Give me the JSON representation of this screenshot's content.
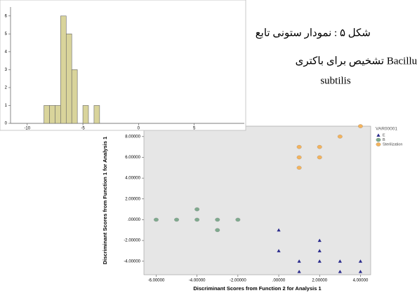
{
  "chart_data": [
    {
      "type": "histogram",
      "bins": [
        -8.5,
        -8,
        -7.5,
        -7,
        -6.5,
        -6,
        -5.5,
        -5,
        -4.5,
        -4,
        -3.5
      ],
      "values": [
        1,
        1,
        1,
        6,
        5,
        3,
        0,
        1,
        0,
        1
      ],
      "color": "#d9d49b",
      "xlim": [
        -11.5,
        9.5
      ],
      "ylim": [
        0,
        6.5
      ],
      "xticks": [
        -10,
        -5,
        0,
        5
      ],
      "yticks": [
        0,
        1,
        2,
        3,
        4,
        5,
        6
      ]
    },
    {
      "type": "scatter",
      "x_label": "Discriminant Scores from Function 2 for Analysis 1",
      "y_label": "Discriminant Scores from Function 1 for Analysis 1",
      "legend_title": "VAR00001",
      "series": [
        {
          "name": "E",
          "color": "#2b2b8c",
          "marker": "triangle",
          "x": [
            0,
            0,
            1,
            1,
            2,
            2,
            2,
            3,
            3,
            4,
            4
          ],
          "values": [
            -1,
            -3,
            -4,
            -5,
            -2,
            -3,
            -4,
            -4,
            -5,
            -4,
            -5
          ]
        },
        {
          "name": "B",
          "color": "#7faa8e",
          "marker": "circle",
          "x": [
            -6,
            -5,
            -4,
            -4,
            -3,
            -3,
            -2
          ],
          "values": [
            0,
            0,
            1,
            0,
            0,
            -1,
            0
          ]
        },
        {
          "name": "Sterilization",
          "color": "#f4b35c",
          "marker": "circle",
          "x": [
            1,
            1,
            1,
            2,
            2,
            3,
            4
          ],
          "values": [
            7,
            6,
            5,
            7,
            6,
            8,
            9
          ]
        }
      ],
      "xlim": [
        -6.6,
        4.5
      ],
      "ylim": [
        -5.3,
        9
      ],
      "xticks": [
        {
          "value": -6,
          "label": "-6.00000"
        },
        {
          "value": -4,
          "label": "-4.00000"
        },
        {
          "value": -2,
          "label": "-2.00000"
        },
        {
          "value": 0,
          "label": ".00000"
        },
        {
          "value": 2,
          "label": "2.00000"
        },
        {
          "value": 4,
          "label": "4.00000"
        }
      ],
      "yticks": [
        {
          "value": -4,
          "label": "-4.00000"
        },
        {
          "value": -2,
          "label": "-2.00000"
        },
        {
          "value": 0,
          "label": ".00000"
        },
        {
          "value": 2,
          "label": "2.00000"
        },
        {
          "value": 4,
          "label": "4.00000"
        },
        {
          "value": 6,
          "label": "6.00000"
        },
        {
          "value": 8,
          "label": "8.00000"
        }
      ]
    }
  ],
  "caption": {
    "lines": [
      "شکل ۵ : نمودار ستونی تابع",
      "تشخیص برای باکتری  Bacillus",
      "subtilis"
    ]
  }
}
